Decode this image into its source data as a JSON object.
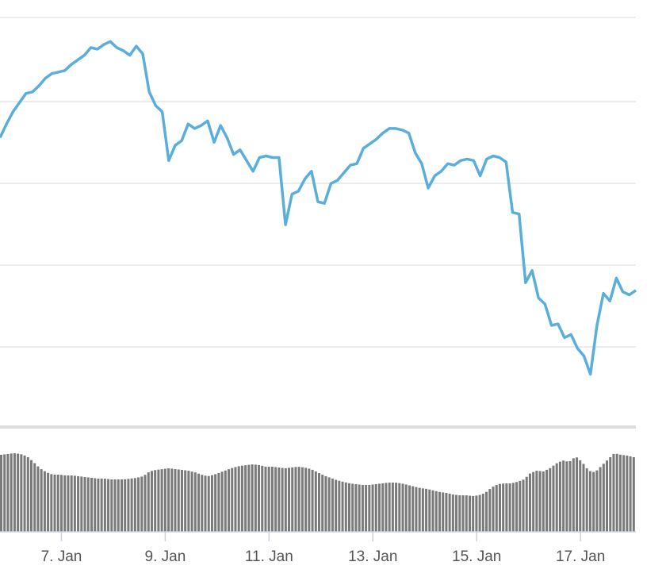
{
  "chart_data": {
    "type": "line",
    "title": "",
    "xlabel": "",
    "ylabel": "",
    "grid": true,
    "legend": "none",
    "x_domain": [
      "2018-01-06",
      "2018-01-18"
    ],
    "x_ticks": [
      {
        "date": "2018-01-07",
        "label": "7. Jan"
      },
      {
        "date": "2018-01-09",
        "label": "9. Jan"
      },
      {
        "date": "2018-01-11",
        "label": "11. Jan"
      },
      {
        "date": "2018-01-13",
        "label": "13. Jan"
      },
      {
        "date": "2018-01-15",
        "label": "15. Jan"
      },
      {
        "date": "2018-01-17",
        "label": "17. Jan"
      }
    ],
    "price_series": {
      "color": "#5aaedc",
      "points": [
        [
          "2018-01-06 00:00",
          175
        ],
        [
          "2018-01-06 03:00",
          184
        ],
        [
          "2018-01-06 06:00",
          192
        ],
        [
          "2018-01-06 09:00",
          198
        ],
        [
          "2018-01-06 12:00",
          204
        ],
        [
          "2018-01-06 15:00",
          205
        ],
        [
          "2018-01-06 18:00",
          209
        ],
        [
          "2018-01-06 21:00",
          214
        ],
        [
          "2018-01-07 00:00",
          217
        ],
        [
          "2018-01-07 03:00",
          218
        ],
        [
          "2018-01-07 06:00",
          219
        ],
        [
          "2018-01-07 09:00",
          223
        ],
        [
          "2018-01-07 12:00",
          226
        ],
        [
          "2018-01-07 15:00",
          229
        ],
        [
          "2018-01-07 18:00",
          234
        ],
        [
          "2018-01-07 21:00",
          233
        ],
        [
          "2018-01-08 00:00",
          236
        ],
        [
          "2018-01-08 03:00",
          238
        ],
        [
          "2018-01-08 06:00",
          234
        ],
        [
          "2018-01-08 09:00",
          232
        ],
        [
          "2018-01-08 12:00",
          229
        ],
        [
          "2018-01-08 15:00",
          235
        ],
        [
          "2018-01-08 18:00",
          230
        ],
        [
          "2018-01-08 21:00",
          205
        ],
        [
          "2018-01-09 00:00",
          196
        ],
        [
          "2018-01-09 03:00",
          192
        ],
        [
          "2018-01-09 06:00",
          160
        ],
        [
          "2018-01-09 09:00",
          170
        ],
        [
          "2018-01-09 12:00",
          173
        ],
        [
          "2018-01-09 15:00",
          184
        ],
        [
          "2018-01-09 18:00",
          181
        ],
        [
          "2018-01-09 21:00",
          183
        ],
        [
          "2018-01-10 00:00",
          186
        ],
        [
          "2018-01-10 03:00",
          172
        ],
        [
          "2018-01-10 06:00",
          183
        ],
        [
          "2018-01-10 09:00",
          175
        ],
        [
          "2018-01-10 12:00",
          164
        ],
        [
          "2018-01-10 15:00",
          167
        ],
        [
          "2018-01-10 18:00",
          160
        ],
        [
          "2018-01-10 21:00",
          153
        ],
        [
          "2018-01-11 00:00",
          162
        ],
        [
          "2018-01-11 03:00",
          163
        ],
        [
          "2018-01-11 06:00",
          162
        ],
        [
          "2018-01-11 09:00",
          162
        ],
        [
          "2018-01-11 12:00",
          118
        ],
        [
          "2018-01-11 15:00",
          138
        ],
        [
          "2018-01-11 18:00",
          140
        ],
        [
          "2018-01-11 21:00",
          148
        ],
        [
          "2018-01-12 00:00",
          153
        ],
        [
          "2018-01-12 03:00",
          133
        ],
        [
          "2018-01-12 06:00",
          132
        ],
        [
          "2018-01-12 09:00",
          145
        ],
        [
          "2018-01-12 12:00",
          147
        ],
        [
          "2018-01-12 15:00",
          152
        ],
        [
          "2018-01-12 18:00",
          157
        ],
        [
          "2018-01-12 21:00",
          158
        ],
        [
          "2018-01-13 00:00",
          168
        ],
        [
          "2018-01-13 03:00",
          171
        ],
        [
          "2018-01-13 06:00",
          174
        ],
        [
          "2018-01-13 09:00",
          178
        ],
        [
          "2018-01-13 12:00",
          181
        ],
        [
          "2018-01-13 15:00",
          181
        ],
        [
          "2018-01-13 18:00",
          180
        ],
        [
          "2018-01-13 21:00",
          178
        ],
        [
          "2018-01-14 00:00",
          165
        ],
        [
          "2018-01-14 03:00",
          158
        ],
        [
          "2018-01-14 06:00",
          142
        ],
        [
          "2018-01-14 09:00",
          150
        ],
        [
          "2018-01-14 12:00",
          153
        ],
        [
          "2018-01-14 15:00",
          158
        ],
        [
          "2018-01-14 18:00",
          157
        ],
        [
          "2018-01-14 21:00",
          160
        ],
        [
          "2018-01-15 00:00",
          161
        ],
        [
          "2018-01-15 03:00",
          160
        ],
        [
          "2018-01-15 06:00",
          150
        ],
        [
          "2018-01-15 09:00",
          161
        ],
        [
          "2018-01-15 12:00",
          163
        ],
        [
          "2018-01-15 15:00",
          162
        ],
        [
          "2018-01-15 18:00",
          159
        ],
        [
          "2018-01-15 21:00",
          126
        ],
        [
          "2018-01-16 00:00",
          125
        ],
        [
          "2018-01-16 03:00",
          80
        ],
        [
          "2018-01-16 06:00",
          88
        ],
        [
          "2018-01-16 09:00",
          70
        ],
        [
          "2018-01-16 12:00",
          66
        ],
        [
          "2018-01-16 15:00",
          52
        ],
        [
          "2018-01-16 18:00",
          53
        ],
        [
          "2018-01-16 21:00",
          44
        ],
        [
          "2018-01-17 00:00",
          46
        ],
        [
          "2018-01-17 03:00",
          37
        ],
        [
          "2018-01-17 06:00",
          32
        ],
        [
          "2018-01-17 09:00",
          20
        ],
        [
          "2018-01-17 12:00",
          52
        ],
        [
          "2018-01-17 15:00",
          73
        ],
        [
          "2018-01-17 18:00",
          68
        ],
        [
          "2018-01-17 21:00",
          83
        ],
        [
          "2018-01-18 00:00",
          74
        ],
        [
          "2018-01-18 03:00",
          72
        ],
        [
          "2018-01-18 06:00",
          75
        ]
      ]
    },
    "volume_series": {
      "color": "#7a7a7a",
      "points": [
        [
          "2018-01-06 00:00",
          97
        ],
        [
          "2018-01-06 03:00",
          98
        ],
        [
          "2018-01-06 06:00",
          99
        ],
        [
          "2018-01-06 09:00",
          98
        ],
        [
          "2018-01-06 12:00",
          95
        ],
        [
          "2018-01-06 15:00",
          88
        ],
        [
          "2018-01-06 18:00",
          80
        ],
        [
          "2018-01-06 21:00",
          75
        ],
        [
          "2018-01-07 00:00",
          72
        ],
        [
          "2018-01-07 03:00",
          72
        ],
        [
          "2018-01-07 06:00",
          71
        ],
        [
          "2018-01-07 09:00",
          71
        ],
        [
          "2018-01-07 12:00",
          70
        ],
        [
          "2018-01-07 15:00",
          69
        ],
        [
          "2018-01-07 18:00",
          68
        ],
        [
          "2018-01-07 21:00",
          67
        ],
        [
          "2018-01-08 00:00",
          67
        ],
        [
          "2018-01-08 03:00",
          66
        ],
        [
          "2018-01-08 06:00",
          66
        ],
        [
          "2018-01-08 09:00",
          66
        ],
        [
          "2018-01-08 12:00",
          67
        ],
        [
          "2018-01-08 15:00",
          68
        ],
        [
          "2018-01-08 18:00",
          70
        ],
        [
          "2018-01-08 21:00",
          76
        ],
        [
          "2018-01-09 00:00",
          78
        ],
        [
          "2018-01-09 03:00",
          79
        ],
        [
          "2018-01-09 06:00",
          80
        ],
        [
          "2018-01-09 09:00",
          79
        ],
        [
          "2018-01-09 12:00",
          78
        ],
        [
          "2018-01-09 15:00",
          77
        ],
        [
          "2018-01-09 18:00",
          75
        ],
        [
          "2018-01-09 21:00",
          72
        ],
        [
          "2018-01-10 00:00",
          70
        ],
        [
          "2018-01-10 03:00",
          72
        ],
        [
          "2018-01-10 06:00",
          75
        ],
        [
          "2018-01-10 09:00",
          78
        ],
        [
          "2018-01-10 12:00",
          81
        ],
        [
          "2018-01-10 15:00",
          83
        ],
        [
          "2018-01-10 18:00",
          84
        ],
        [
          "2018-01-10 21:00",
          85
        ],
        [
          "2018-01-11 00:00",
          84
        ],
        [
          "2018-01-11 03:00",
          82
        ],
        [
          "2018-01-11 06:00",
          82
        ],
        [
          "2018-01-11 09:00",
          81
        ],
        [
          "2018-01-11 12:00",
          80
        ],
        [
          "2018-01-11 15:00",
          81
        ],
        [
          "2018-01-11 18:00",
          82
        ],
        [
          "2018-01-11 21:00",
          81
        ],
        [
          "2018-01-12 00:00",
          79
        ],
        [
          "2018-01-12 03:00",
          75
        ],
        [
          "2018-01-12 06:00",
          71
        ],
        [
          "2018-01-12 09:00",
          68
        ],
        [
          "2018-01-12 12:00",
          65
        ],
        [
          "2018-01-12 15:00",
          63
        ],
        [
          "2018-01-12 18:00",
          61
        ],
        [
          "2018-01-12 21:00",
          60
        ],
        [
          "2018-01-13 00:00",
          59
        ],
        [
          "2018-01-13 03:00",
          59
        ],
        [
          "2018-01-13 06:00",
          60
        ],
        [
          "2018-01-13 09:00",
          61
        ],
        [
          "2018-01-13 12:00",
          62
        ],
        [
          "2018-01-13 15:00",
          62
        ],
        [
          "2018-01-13 18:00",
          61
        ],
        [
          "2018-01-13 21:00",
          59
        ],
        [
          "2018-01-14 00:00",
          57
        ],
        [
          "2018-01-14 03:00",
          55
        ],
        [
          "2018-01-14 06:00",
          54
        ],
        [
          "2018-01-14 09:00",
          52
        ],
        [
          "2018-01-14 12:00",
          50
        ],
        [
          "2018-01-14 15:00",
          49
        ],
        [
          "2018-01-14 18:00",
          47
        ],
        [
          "2018-01-14 21:00",
          46
        ],
        [
          "2018-01-15 00:00",
          46
        ],
        [
          "2018-01-15 03:00",
          45
        ],
        [
          "2018-01-15 06:00",
          46
        ],
        [
          "2018-01-15 09:00",
          49
        ],
        [
          "2018-01-15 12:00",
          56
        ],
        [
          "2018-01-15 15:00",
          60
        ],
        [
          "2018-01-15 18:00",
          61
        ],
        [
          "2018-01-15 21:00",
          61
        ],
        [
          "2018-01-16 00:00",
          63
        ],
        [
          "2018-01-16 03:00",
          66
        ],
        [
          "2018-01-16 06:00",
          74
        ],
        [
          "2018-01-16 09:00",
          77
        ],
        [
          "2018-01-16 12:00",
          76
        ],
        [
          "2018-01-16 15:00",
          80
        ],
        [
          "2018-01-16 18:00",
          86
        ],
        [
          "2018-01-16 21:00",
          90
        ],
        [
          "2018-01-17 00:00",
          88
        ],
        [
          "2018-01-17 03:00",
          95
        ],
        [
          "2018-01-17 06:00",
          88
        ],
        [
          "2018-01-17 09:00",
          77
        ],
        [
          "2018-01-17 12:00",
          75
        ],
        [
          "2018-01-17 15:00",
          83
        ],
        [
          "2018-01-17 18:00",
          91
        ],
        [
          "2018-01-17 21:00",
          99
        ],
        [
          "2018-01-18 00:00",
          97
        ],
        [
          "2018-01-18 03:00",
          96
        ],
        [
          "2018-01-18 06:00",
          94
        ]
      ]
    }
  }
}
